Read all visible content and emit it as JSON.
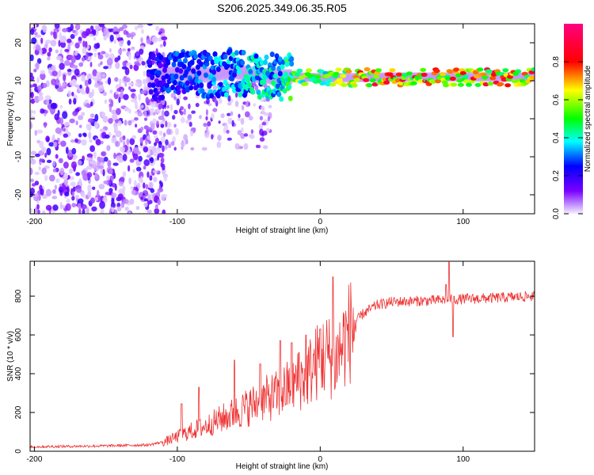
{
  "chart_data": [
    {
      "type": "heatmap",
      "title": "S206.2025.349.06.35.R05",
      "xlabel": "Height of straight line (km)",
      "ylabel": "Frequency (Hz)",
      "xlim": [
        -203,
        150
      ],
      "ylim": [
        -25,
        25
      ],
      "xticks": [
        -200,
        -100,
        0,
        100
      ],
      "yticks": [
        -20,
        -10,
        0,
        10,
        20
      ],
      "colorbar": {
        "label": "Normalized spectral amplitude",
        "range": [
          0.0,
          1.0
        ],
        "ticks": [
          "0.0",
          "0.2",
          "0.4",
          "0.6",
          "0.8"
        ],
        "tick_values": [
          0.0,
          0.2,
          0.4,
          0.6,
          0.8
        ],
        "colors": [
          "#f4f0ff",
          "#7a00ff",
          "#0000ff",
          "#00ffff",
          "#00ff00",
          "#ffff00",
          "#ff0000",
          "#ff0080"
        ]
      },
      "signal_band": {
        "center_hz": [
          [
            -120,
            11
          ],
          [
            -100,
            12
          ],
          [
            -80,
            11.5
          ],
          [
            -60,
            12.5
          ],
          [
            -45,
            11.5
          ],
          [
            -30,
            11
          ],
          [
            -15,
            11
          ],
          [
            0,
            10.8
          ],
          [
            20,
            10.8
          ],
          [
            50,
            11
          ],
          [
            80,
            11
          ],
          [
            100,
            11
          ],
          [
            150,
            11
          ]
        ],
        "peak_amplitude": [
          [
            -120,
            0.3
          ],
          [
            -100,
            0.35
          ],
          [
            -80,
            0.4
          ],
          [
            -60,
            0.45
          ],
          [
            -45,
            0.5
          ],
          [
            -30,
            0.5
          ],
          [
            -15,
            0.7
          ],
          [
            0,
            0.6
          ],
          [
            20,
            0.85
          ],
          [
            50,
            0.95
          ],
          [
            80,
            0.9
          ],
          [
            100,
            0.9
          ],
          [
            150,
            0.9
          ]
        ]
      },
      "noise_region_km": [
        -203,
        -120
      ]
    },
    {
      "type": "line",
      "xlabel": "Height of straight line (km)",
      "ylabel": "SNR (10 * v/v)",
      "xlim": [
        -203,
        150
      ],
      "ylim": [
        0,
        980
      ],
      "xticks": [
        -200,
        -100,
        0,
        100
      ],
      "yticks": [
        0,
        200,
        400,
        600,
        800
      ],
      "series": [
        {
          "name": "SNR",
          "color": "#ee3333",
          "trend": [
            [
              -203,
              20
            ],
            [
              -150,
              25
            ],
            [
              -120,
              30
            ],
            [
              -110,
              45
            ],
            [
              -100,
              75
            ],
            [
              -90,
              105
            ],
            [
              -80,
              130
            ],
            [
              -70,
              165
            ],
            [
              -60,
              195
            ],
            [
              -50,
              230
            ],
            [
              -40,
              265
            ],
            [
              -30,
              290
            ],
            [
              -20,
              340
            ],
            [
              -10,
              390
            ],
            [
              0,
              480
            ],
            [
              5,
              500
            ],
            [
              10,
              460
            ],
            [
              15,
              540
            ],
            [
              20,
              610
            ],
            [
              25,
              670
            ],
            [
              30,
              710
            ],
            [
              40,
              755
            ],
            [
              50,
              770
            ],
            [
              70,
              775
            ],
            [
              85,
              780
            ],
            [
              100,
              785
            ],
            [
              120,
              790
            ],
            [
              150,
              800
            ]
          ],
          "spikes": [
            [
              -97,
              245
            ],
            [
              -85,
              330
            ],
            [
              -60,
              470
            ],
            [
              -42,
              450
            ],
            [
              -28,
              570
            ],
            [
              -20,
              560
            ],
            [
              -15,
              510
            ],
            [
              -10,
              600
            ],
            [
              0,
              630
            ],
            [
              9,
              900
            ],
            [
              88,
              860
            ],
            [
              90,
              975
            ],
            [
              93,
              590
            ]
          ]
        }
      ]
    }
  ]
}
